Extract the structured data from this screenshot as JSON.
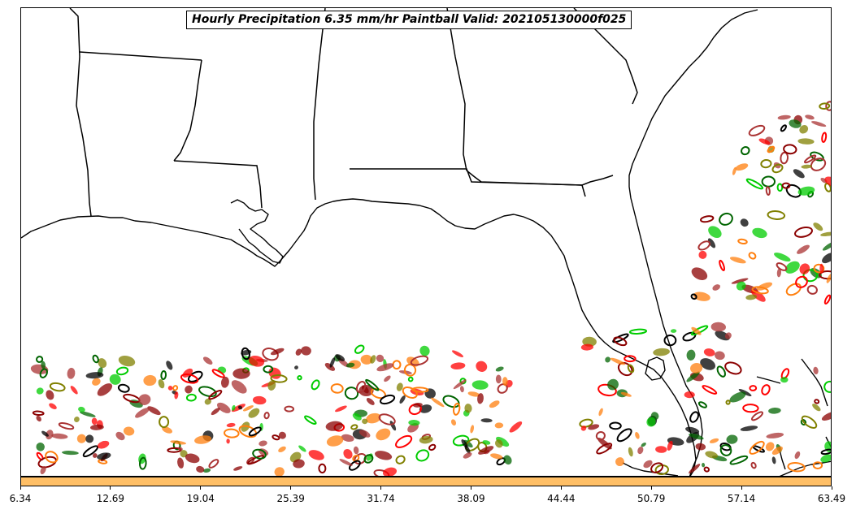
{
  "title": "Hourly Precipitation 6.35 mm/hr Paintball Valid: 202105130000f025",
  "colorbar": {
    "color": "#ffbf66",
    "ticks": [
      "6.34",
      "12.69",
      "19.04",
      "25.39",
      "31.74",
      "38.09",
      "44.44",
      "50.79",
      "57.14",
      "63.49"
    ],
    "min": 6.34,
    "max": 63.49
  },
  "map": {
    "region": "Gulf Coast / Florida",
    "coastline_color": "#000000",
    "ensemble_colors": [
      "#000000",
      "#8b0000",
      "#ff0000",
      "#ff7f0e",
      "#808000",
      "#006400",
      "#00cc00",
      "#aa3333"
    ]
  }
}
